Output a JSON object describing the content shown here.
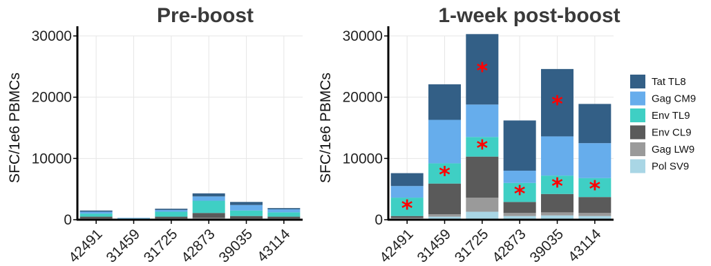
{
  "chart_data": [
    {
      "type": "bar",
      "stacked": true,
      "title": "Pre-boost",
      "xlabel": "",
      "ylabel": "SFC/1e6 PBMCs",
      "ylim": [
        0,
        30000
      ],
      "yticks": [
        "0",
        "10000",
        "20000",
        "30000"
      ],
      "grid": true,
      "categories": [
        "42491",
        "31459",
        "31725",
        "42873",
        "39035",
        "43114"
      ],
      "series": [
        {
          "name": "Pol SV9",
          "color": "#a9d6e5",
          "values": [
            100,
            100,
            100,
            150,
            100,
            100
          ]
        },
        {
          "name": "Gag LW9",
          "color": "#9a9a9a",
          "values": [
            100,
            0,
            100,
            150,
            100,
            100
          ]
        },
        {
          "name": "Env CL9",
          "color": "#5a5a5a",
          "values": [
            300,
            0,
            300,
            800,
            400,
            300
          ]
        },
        {
          "name": "Env TL9",
          "color": "#3fcfc4",
          "values": [
            500,
            100,
            800,
            2000,
            900,
            700
          ]
        },
        {
          "name": "Gag CM9",
          "color": "#66adec",
          "values": [
            300,
            100,
            300,
            700,
            900,
            500
          ]
        },
        {
          "name": "Tat TL8",
          "color": "#335f86",
          "values": [
            200,
            0,
            200,
            500,
            500,
            200
          ]
        }
      ],
      "significant": []
    },
    {
      "type": "bar",
      "stacked": true,
      "title": "1-week post-boost",
      "xlabel": "",
      "ylabel": "SFC/1e6 PBMCs",
      "ylim": [
        0,
        30000
      ],
      "yticks": [
        "0",
        "10000",
        "20000",
        "30000"
      ],
      "grid": true,
      "categories": [
        "42491",
        "31459",
        "31725",
        "42873",
        "39035",
        "43114"
      ],
      "series": [
        {
          "name": "Pol SV9",
          "color": "#a9d6e5",
          "values": [
            200,
            500,
            1300,
            600,
            700,
            600
          ]
        },
        {
          "name": "Gag LW9",
          "color": "#9a9a9a",
          "values": [
            100,
            400,
            2300,
            500,
            500,
            500
          ]
        },
        {
          "name": "Env CL9",
          "color": "#5a5a5a",
          "values": [
            300,
            5000,
            6700,
            1800,
            3000,
            2600
          ]
        },
        {
          "name": "Env TL9",
          "color": "#3fcfc4",
          "values": [
            3000,
            3300,
            3200,
            3100,
            3000,
            3100
          ]
        },
        {
          "name": "Gag CM9",
          "color": "#66adec",
          "values": [
            1900,
            7100,
            5300,
            2000,
            6400,
            5700
          ]
        },
        {
          "name": "Tat TL8",
          "color": "#335f86",
          "values": [
            2100,
            5800,
            11500,
            8200,
            11000,
            6400
          ]
        }
      ],
      "significant": [
        {
          "category": "42491",
          "series": "Env TL9"
        },
        {
          "category": "31459",
          "series": "Env TL9"
        },
        {
          "category": "31725",
          "series": "Env TL9"
        },
        {
          "category": "31725",
          "series": "Tat TL8"
        },
        {
          "category": "42873",
          "series": "Env TL9"
        },
        {
          "category": "39035",
          "series": "Env TL9"
        },
        {
          "category": "39035",
          "series": "Tat TL8"
        },
        {
          "category": "43114",
          "series": "Env TL9"
        }
      ]
    }
  ],
  "legend": {
    "placement": "right",
    "items": [
      {
        "label": "Tat TL8",
        "color": "#335f86"
      },
      {
        "label": "Gag CM9",
        "color": "#66adec"
      },
      {
        "label": "Env TL9",
        "color": "#3fcfc4"
      },
      {
        "label": "Env CL9",
        "color": "#5a5a5a"
      },
      {
        "label": "Gag LW9",
        "color": "#9a9a9a"
      },
      {
        "label": "Pol SV9",
        "color": "#a9d6e5"
      }
    ]
  },
  "marker": {
    "symbol": "*",
    "color": "#ff0000"
  }
}
